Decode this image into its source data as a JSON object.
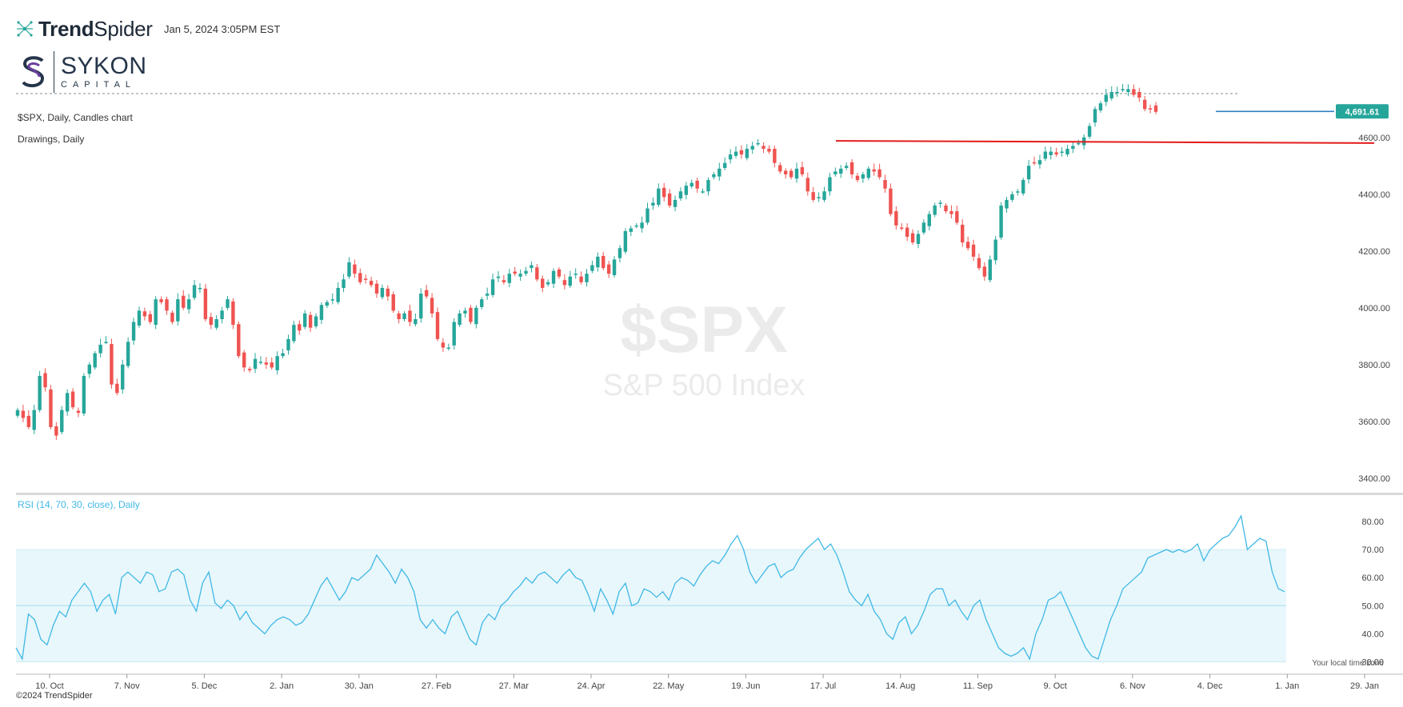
{
  "header": {
    "brand": "TrendSpider",
    "brand_bold": "Trend",
    "brand_thin": "Spider",
    "timestamp": "Jan 5, 2024 3:05PM EST",
    "company_name": "SYKON",
    "company_sub": "CAPITAL"
  },
  "labels": {
    "chart_title": "$SPX, Daily, Candles chart",
    "drawings": "Drawings, Daily",
    "rsi": "RSI (14, 70, 30, close), Daily",
    "watermark_symbol": "$SPX",
    "watermark_name": "S&P 500 Index",
    "timezone": "Your local time zone",
    "copyright": "©2024 TrendSpider"
  },
  "colors": {
    "up": "#26a69a",
    "down": "#ef5350",
    "resistance": "#e31b1b",
    "last_price_line": "#2f7fc1",
    "last_price_tag": "#26a69a",
    "rsi_line": "#3fb8e6",
    "rsi_band": "#e8f7fb"
  },
  "chart_data": [
    {
      "type": "candlestick",
      "symbol": "$SPX",
      "interval": "Daily",
      "y_ticks": [
        3400,
        3600,
        3800,
        4000,
        4200,
        4400,
        4600
      ],
      "ylim": [
        3380,
        4760
      ],
      "x_ticks": [
        "10. Oct",
        "7. Nov",
        "5. Dec",
        "2. Jan",
        "30. Jan",
        "27. Feb",
        "27. Mar",
        "24. Apr",
        "22. May",
        "19. Jun",
        "17. Jul",
        "14. Aug",
        "11. Sep",
        "9. Oct",
        "6. Nov",
        "4. Dec",
        "1. Jan",
        "29. Jan"
      ],
      "last_price": 4691.61,
      "last_price_label": "4,691.61",
      "resistance_line": {
        "from": "2023-07-31",
        "level": 4588,
        "to_level": 4580
      },
      "closes": [
        3640,
        3612,
        3580,
        3640,
        3760,
        3720,
        3580,
        3550,
        3640,
        3700,
        3650,
        3630,
        3760,
        3800,
        3840,
        3870,
        3880,
        3730,
        3700,
        3800,
        3880,
        3950,
        3990,
        3970,
        3950,
        4030,
        4020,
        3990,
        3950,
        4030,
        4000,
        4030,
        4080,
        4070,
        3960,
        3940,
        3960,
        3990,
        4030,
        3940,
        3830,
        3790,
        3780,
        3820,
        3810,
        3800,
        3790,
        3830,
        3840,
        3890,
        3940,
        3920,
        3980,
        3930,
        3970,
        4010,
        4020,
        4030,
        4070,
        4100,
        4160,
        4120,
        4090,
        4100,
        4080,
        4050,
        4070,
        4040,
        3990,
        3960,
        3980,
        3950,
        3960,
        4050,
        4040,
        3980,
        3890,
        3860,
        3860,
        3950,
        3980,
        3990,
        3950,
        4000,
        4030,
        4050,
        4100,
        4110,
        4090,
        4120,
        4120,
        4120,
        4130,
        4150,
        4100,
        4070,
        4090,
        4130,
        4110,
        4080,
        4110,
        4120,
        4090,
        4120,
        4150,
        4180,
        4140,
        4120,
        4170,
        4210,
        4270,
        4280,
        4290,
        4300,
        4350,
        4370,
        4420,
        4390,
        4360,
        4380,
        4410,
        4430,
        4440,
        4420,
        4410,
        4450,
        4470,
        4490,
        4510,
        4540,
        4550,
        4540,
        4560,
        4570,
        4580,
        4560,
        4550,
        4510,
        4480,
        4470,
        4460,
        4490,
        4470,
        4410,
        4380,
        4390,
        4410,
        4460,
        4480,
        4490,
        4500,
        4470,
        4450,
        4470,
        4490,
        4480,
        4460,
        4420,
        4330,
        4290,
        4280,
        4250,
        4230,
        4260,
        4300,
        4330,
        4360,
        4370,
        4340,
        4330,
        4300,
        4230,
        4210,
        4180,
        4140,
        4110,
        4170,
        4240,
        4360,
        4380,
        4400,
        4410,
        4450,
        4500,
        4510,
        4520,
        4550,
        4550,
        4540,
        4550,
        4560,
        4570,
        4580,
        4600,
        4640,
        4700,
        4720,
        4750,
        4760,
        4760,
        4770,
        4770,
        4750,
        4740,
        4700,
        4700,
        4690
      ]
    },
    {
      "type": "line",
      "name": "RSI (14, 70, 30, close), Daily",
      "y_ticks": [
        30,
        40,
        50,
        60,
        70,
        80
      ],
      "ylim": [
        27,
        84
      ],
      "bands": {
        "upper": 70,
        "lower": 30,
        "mid": 50
      },
      "values": [
        35,
        31,
        47,
        45,
        38,
        36,
        43,
        48,
        46,
        52,
        55,
        58,
        55,
        48,
        52,
        54,
        47,
        60,
        62,
        60,
        58,
        62,
        61,
        55,
        56,
        62,
        63,
        61,
        52,
        48,
        58,
        62,
        51,
        49,
        52,
        50,
        45,
        48,
        44,
        42,
        40,
        43,
        45,
        46,
        45,
        43,
        44,
        47,
        52,
        57,
        60,
        56,
        52,
        55,
        60,
        59,
        61,
        63,
        68,
        65,
        62,
        58,
        63,
        60,
        55,
        45,
        42,
        45,
        42,
        40,
        46,
        48,
        43,
        38,
        36,
        44,
        47,
        45,
        50,
        52,
        55,
        57,
        60,
        58,
        61,
        62,
        60,
        58,
        61,
        63,
        60,
        59,
        54,
        48,
        56,
        52,
        47,
        55,
        58,
        50,
        51,
        56,
        55,
        53,
        55,
        52,
        58,
        60,
        59,
        57,
        61,
        64,
        66,
        65,
        68,
        72,
        75,
        70,
        62,
        58,
        61,
        64,
        65,
        60,
        62,
        63,
        67,
        70,
        72,
        74,
        70,
        72,
        68,
        62,
        55,
        52,
        50,
        54,
        48,
        45,
        40,
        38,
        44,
        46,
        40,
        43,
        48,
        54,
        56,
        56,
        50,
        52,
        48,
        45,
        50,
        52,
        45,
        40,
        35,
        33,
        32,
        33,
        35,
        31,
        40,
        45,
        52,
        53,
        55,
        50,
        45,
        40,
        35,
        32,
        31,
        38,
        45,
        50,
        56,
        58,
        60,
        62,
        67,
        68,
        69,
        70,
        69,
        70,
        69,
        70,
        72,
        66,
        70,
        72,
        74,
        75,
        78,
        82,
        70,
        72,
        74,
        73,
        62,
        56,
        55
      ]
    }
  ]
}
